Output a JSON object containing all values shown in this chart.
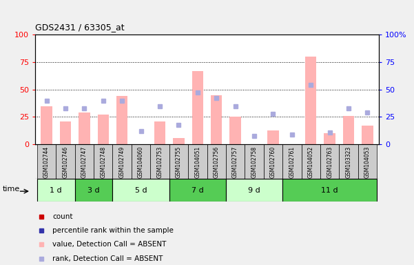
{
  "title": "GDS2431 / 63305_at",
  "samples": [
    "GSM102744",
    "GSM102746",
    "GSM102747",
    "GSM102748",
    "GSM102749",
    "GSM104060",
    "GSM102753",
    "GSM102755",
    "GSM104051",
    "GSM102756",
    "GSM102757",
    "GSM102758",
    "GSM102760",
    "GSM102761",
    "GSM104052",
    "GSM102763",
    "GSM103323",
    "GSM104053"
  ],
  "time_groups": [
    {
      "label": "1 d",
      "start": 0,
      "end": 2,
      "color": "#ccffcc"
    },
    {
      "label": "3 d",
      "start": 2,
      "end": 4,
      "color": "#55cc55"
    },
    {
      "label": "5 d",
      "start": 4,
      "end": 7,
      "color": "#ccffcc"
    },
    {
      "label": "7 d",
      "start": 7,
      "end": 10,
      "color": "#55cc55"
    },
    {
      "label": "9 d",
      "start": 10,
      "end": 13,
      "color": "#ccffcc"
    },
    {
      "label": "11 d",
      "start": 13,
      "end": 18,
      "color": "#55cc55"
    }
  ],
  "absent_value_bars": [
    35,
    21,
    29,
    27,
    44,
    0,
    21,
    6,
    67,
    45,
    25,
    0,
    13,
    0,
    80,
    10,
    26,
    17
  ],
  "absent_rank_dots": [
    40,
    33,
    33,
    40,
    40,
    12,
    35,
    18,
    47,
    42,
    35,
    8,
    28,
    9,
    54,
    11,
    33,
    29
  ],
  "bar_color_light": "#ffb3b3",
  "dot_color_light": "#aaaadd",
  "bar_color_solid": "#cc0000",
  "dot_color_solid": "#3333aa",
  "plot_bg": "#ffffff",
  "fig_bg": "#f0f0f0",
  "sample_row_bg": "#cccccc",
  "ylim": [
    0,
    100
  ],
  "y_ticks": [
    0,
    25,
    50,
    75,
    100
  ],
  "grid_lines": [
    25,
    50,
    75
  ],
  "legend_items": [
    {
      "color": "#cc0000",
      "label": "count"
    },
    {
      "color": "#3333aa",
      "label": "percentile rank within the sample"
    },
    {
      "color": "#ffb3b3",
      "label": "value, Detection Call = ABSENT"
    },
    {
      "color": "#aaaadd",
      "label": "rank, Detection Call = ABSENT"
    }
  ]
}
